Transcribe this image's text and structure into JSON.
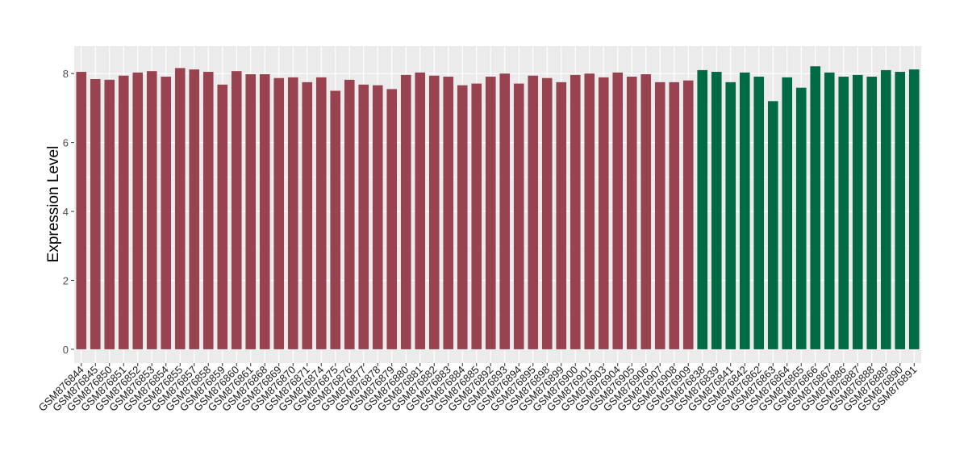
{
  "chart_data": {
    "type": "bar",
    "title": "",
    "xlabel": "",
    "ylabel": "Expression Level",
    "ylim": [
      -0.4,
      8.8
    ],
    "yticks": [
      0,
      2,
      4,
      6,
      8
    ],
    "grid": true,
    "legend": "none",
    "colors": {
      "group1": "#9a4350",
      "group2": "#006a45",
      "panel": "#ebebeb",
      "grid": "#ffffff"
    },
    "categories": [
      "GSM876844",
      "GSM876845",
      "GSM876850",
      "GSM876851",
      "GSM876852",
      "GSM876853",
      "GSM876854",
      "GSM876855",
      "GSM876857",
      "GSM876858",
      "GSM876859",
      "GSM876860",
      "GSM876861",
      "GSM876868",
      "GSM876869",
      "GSM876870",
      "GSM876871",
      "GSM876874",
      "GSM876875",
      "GSM876876",
      "GSM876877",
      "GSM876878",
      "GSM876879",
      "GSM876880",
      "GSM876881",
      "GSM876882",
      "GSM876883",
      "GSM876884",
      "GSM876885",
      "GSM876892",
      "GSM876893",
      "GSM876894",
      "GSM876895",
      "GSM876898",
      "GSM876899",
      "GSM876900",
      "GSM876901",
      "GSM876903",
      "GSM876904",
      "GSM876905",
      "GSM876906",
      "GSM876907",
      "GSM876908",
      "GSM876909",
      "GSM876838",
      "GSM876839",
      "GSM876841",
      "GSM876842",
      "GSM876862",
      "GSM876863",
      "GSM876864",
      "GSM876865",
      "GSM876866",
      "GSM876867",
      "GSM876886",
      "GSM876887",
      "GSM876888",
      "GSM876889",
      "GSM876890",
      "GSM876891"
    ],
    "values": [
      8.05,
      7.84,
      7.82,
      7.94,
      8.03,
      8.07,
      7.91,
      8.16,
      8.12,
      8.05,
      7.68,
      8.07,
      7.98,
      7.98,
      7.87,
      7.89,
      7.75,
      7.89,
      7.5,
      7.82,
      7.68,
      7.66,
      7.55,
      7.96,
      8.03,
      7.94,
      7.91,
      7.66,
      7.71,
      7.91,
      8.0,
      7.71,
      7.94,
      7.87,
      7.75,
      7.96,
      8.0,
      7.89,
      8.03,
      7.91,
      7.98,
      7.75,
      7.75,
      7.8,
      8.1,
      8.05,
      7.75,
      8.03,
      7.91,
      7.2,
      7.89,
      7.59,
      8.21,
      8.03,
      7.91,
      7.96,
      7.91,
      8.1,
      8.05,
      8.12
    ],
    "groups": [
      "group1",
      "group1",
      "group1",
      "group1",
      "group1",
      "group1",
      "group1",
      "group1",
      "group1",
      "group1",
      "group1",
      "group1",
      "group1",
      "group1",
      "group1",
      "group1",
      "group1",
      "group1",
      "group1",
      "group1",
      "group1",
      "group1",
      "group1",
      "group1",
      "group1",
      "group1",
      "group1",
      "group1",
      "group1",
      "group1",
      "group1",
      "group1",
      "group1",
      "group1",
      "group1",
      "group1",
      "group1",
      "group1",
      "group1",
      "group1",
      "group1",
      "group1",
      "group1",
      "group1",
      "group2",
      "group2",
      "group2",
      "group2",
      "group2",
      "group2",
      "group2",
      "group2",
      "group2",
      "group2",
      "group2",
      "group2",
      "group2",
      "group2",
      "group2",
      "group2"
    ]
  }
}
